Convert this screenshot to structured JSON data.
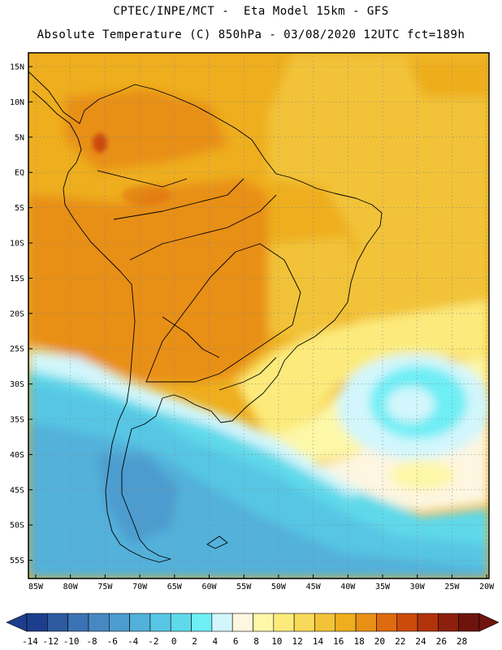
{
  "header": {
    "line1": "CPTEC/INPE/MCT -  Eta Model 15km - GFS",
    "line2": "Absolute Temperature (C) 850hPa - 03/08/2020 12UTC fct=189h"
  },
  "map": {
    "lat_labels": [
      "15N",
      "10N",
      "5N",
      "EQ",
      "5S",
      "10S",
      "15S",
      "20S",
      "25S",
      "30S",
      "35S",
      "40S",
      "45S",
      "50S",
      "55S"
    ],
    "lon_labels": [
      "85W",
      "80W",
      "75W",
      "70W",
      "65W",
      "60W",
      "55W",
      "50W",
      "45W",
      "40W",
      "35W",
      "30W",
      "25W",
      "20W"
    ]
  },
  "colorbar": {
    "labels": [
      "-14",
      "-12",
      "-10",
      "-8",
      "-6",
      "-4",
      "-2",
      "0",
      "2",
      "4",
      "6",
      "8",
      "10",
      "12",
      "14",
      "16",
      "18",
      "20",
      "22",
      "24",
      "26",
      "28"
    ],
    "colors": [
      "#1d3e8c",
      "#2d5aa0",
      "#3b72b4",
      "#4688c2",
      "#4d9ccf",
      "#52b1da",
      "#57c6e4",
      "#5fd9ea",
      "#6eeef5",
      "#d2f6fb",
      "#fdf6e0",
      "#fdf7a8",
      "#fceb7b",
      "#f8da5b",
      "#f2c338",
      "#eeae1e",
      "#e88f16",
      "#de6b10",
      "#cc4a0c",
      "#b0330b",
      "#8c200c",
      "#6e140d"
    ]
  }
}
